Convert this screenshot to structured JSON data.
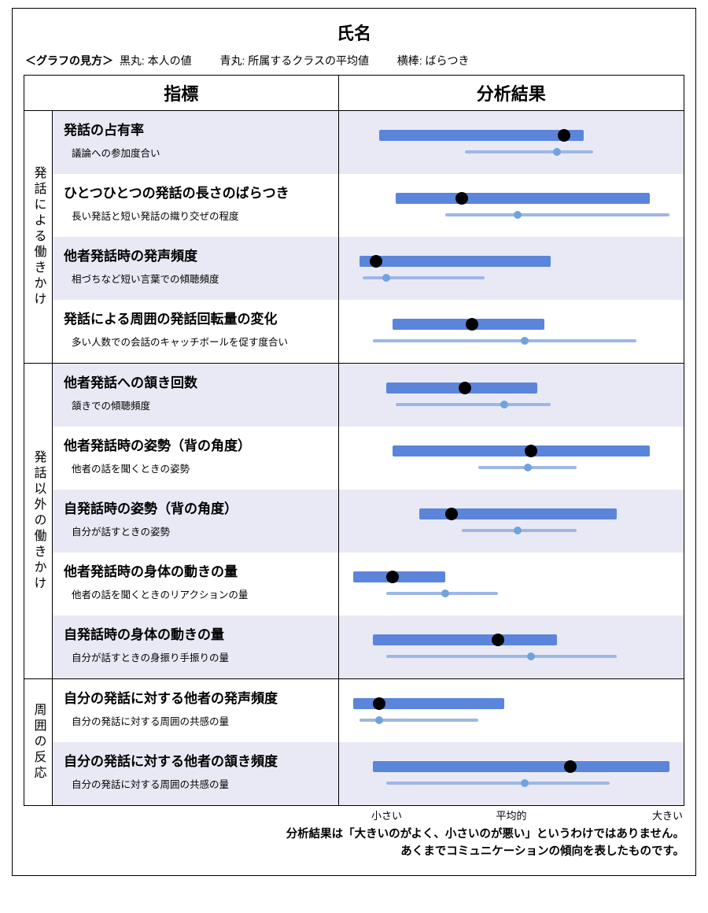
{
  "title": "氏名",
  "legend": {
    "prefix": "＜グラフの見方＞",
    "black_label": "黒丸:",
    "black_text": "本人の値",
    "blue_label": "青丸:",
    "blue_text": "所属するクラスの平均値",
    "hbar_label": "横棒:",
    "hbar_text": "ばらつき"
  },
  "header": {
    "indicator": "指標",
    "result": "分析結果"
  },
  "axis": {
    "small": "小さい",
    "mid": "平均的",
    "big": "大きい"
  },
  "colors": {
    "odd_bg": "#e9e9f5",
    "even_bg": "#ffffff",
    "main_bar": "#5b85da",
    "avg_bar": "#9db7e6",
    "avg_dot": "#6fa3de",
    "black_dot": "#000000"
  },
  "chart_xrange": [
    0,
    100
  ],
  "categories": [
    {
      "name": "発話による働きかけ",
      "rows": [
        {
          "title": "発話の占有率",
          "sub": "議論への参加度合い",
          "main_bar": [
            10,
            72
          ],
          "main_dot": 66,
          "avg_bar": [
            36,
            75
          ],
          "avg_dot": 64
        },
        {
          "title": "ひとつひとつの発話の長さのばらつき",
          "sub": "長い発話と短い発話の織り交ぜの程度",
          "main_bar": [
            15,
            92
          ],
          "main_dot": 35,
          "avg_bar": [
            30,
            98
          ],
          "avg_dot": 52
        },
        {
          "title": "他者発話時の発声頻度",
          "sub": "相づちなど短い言葉での傾聴頻度",
          "main_bar": [
            4,
            62
          ],
          "main_dot": 9,
          "avg_bar": [
            5,
            42
          ],
          "avg_dot": 12
        },
        {
          "title": "発話による周囲の発話回転量の変化",
          "sub": "多い人数での会話のキャッチボールを促す度合い",
          "main_bar": [
            14,
            60
          ],
          "main_dot": 38,
          "avg_bar": [
            8,
            88
          ],
          "avg_dot": 54
        }
      ]
    },
    {
      "name": "発話以外の働きかけ",
      "rows": [
        {
          "title": "他者発話への頷き回数",
          "sub": "頷きでの傾聴頻度",
          "main_bar": [
            12,
            58
          ],
          "main_dot": 36,
          "avg_bar": [
            15,
            62
          ],
          "avg_dot": 48
        },
        {
          "title": "他者発話時の姿勢（背の角度）",
          "sub": "他者の話を聞くときの姿勢",
          "main_bar": [
            14,
            92
          ],
          "main_dot": 56,
          "avg_bar": [
            40,
            70
          ],
          "avg_dot": 55
        },
        {
          "title": "自発話時の姿勢（背の角度）",
          "sub": "自分が話すときの姿勢",
          "main_bar": [
            22,
            82
          ],
          "main_dot": 32,
          "avg_bar": [
            35,
            70
          ],
          "avg_dot": 52
        },
        {
          "title": "他者発話時の身体の動きの量",
          "sub": "他者の話を聞くときのリアクションの量",
          "main_bar": [
            2,
            30
          ],
          "main_dot": 14,
          "avg_bar": [
            12,
            46
          ],
          "avg_dot": 30
        },
        {
          "title": "自発話時の身体の動きの量",
          "sub": "自分が話すときの身振り手振りの量",
          "main_bar": [
            8,
            64
          ],
          "main_dot": 46,
          "avg_bar": [
            12,
            82
          ],
          "avg_dot": 56
        }
      ]
    },
    {
      "name": "周囲の反応",
      "rows": [
        {
          "title": "自分の発話に対する他者の発声頻度",
          "sub": "自分の発話に対する周囲の共感の量",
          "main_bar": [
            2,
            48
          ],
          "main_dot": 10,
          "avg_bar": [
            4,
            40
          ],
          "avg_dot": 10
        },
        {
          "title": "自分の発話に対する他者の頷き頻度",
          "sub": "自分の発話に対する周囲の共感の量",
          "main_bar": [
            8,
            98
          ],
          "main_dot": 68,
          "avg_bar": [
            12,
            80
          ],
          "avg_dot": 54
        }
      ]
    }
  ],
  "footnote": {
    "l1": "分析結果は「大きいのがよく、小さいのが悪い」というわけではありません。",
    "l2": "あくまでコミュニケーションの傾向を表したものです。"
  }
}
